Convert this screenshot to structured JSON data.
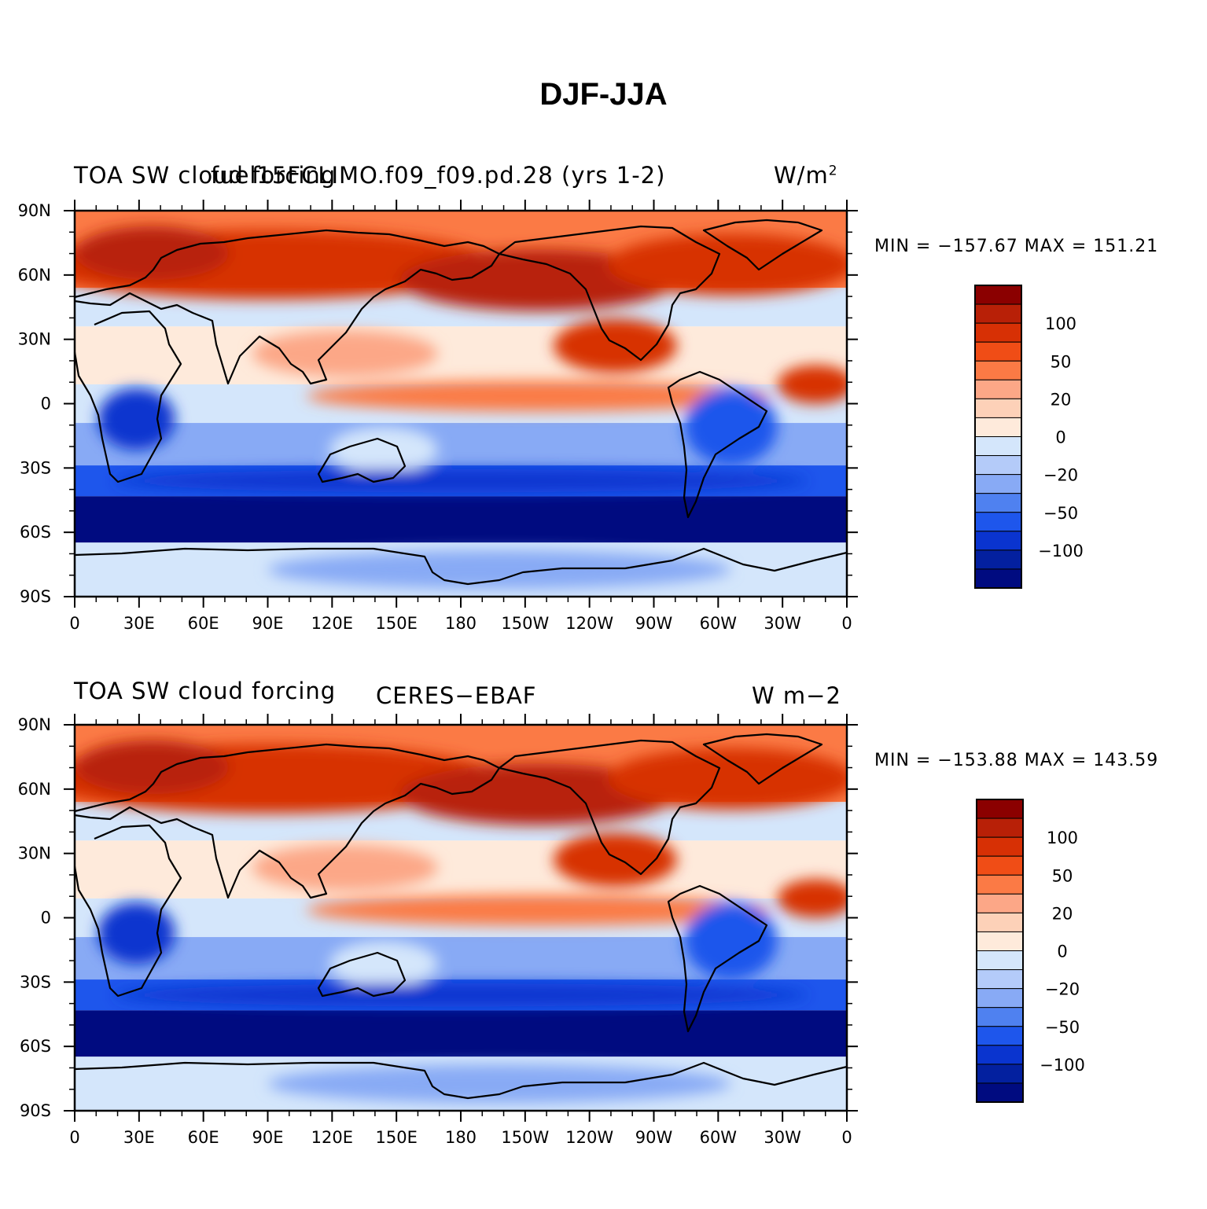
{
  "title": "DJF-JJA",
  "panels": [
    {
      "left_title": "TOA SW cloud forcing",
      "center_title": "fuel15FCLIMO.f09_f09.pd.28 (yrs 1-2)",
      "units": "W/m",
      "units_sup": "2",
      "min_max": "MIN = −157.67  MAX = 151.21"
    },
    {
      "left_title": "TOA SW cloud forcing",
      "center_title": "CERES−EBAF",
      "units": "W m−2",
      "units_sup": "",
      "min_max": "MIN = −153.88  MAX = 143.59"
    }
  ],
  "x_ticks": [
    "0",
    "30E",
    "60E",
    "90E",
    "120E",
    "150E",
    "180",
    "150W",
    "120W",
    "90W",
    "60W",
    "30W",
    "0"
  ],
  "y_ticks": [
    "90N",
    "60N",
    "30N",
    "0",
    "30S",
    "60S",
    "90S"
  ],
  "colorbar": {
    "labels": [
      "100",
      "50",
      "20",
      "0",
      "−20",
      "−50",
      "−100"
    ],
    "colors": [
      "#8b0000",
      "#b82007",
      "#d73005",
      "#f04d16",
      "#fb7a45",
      "#fca787",
      "#fdd1b8",
      "#feeadb",
      "#d4e6fb",
      "#b4cbf9",
      "#88aaf5",
      "#4f81f0",
      "#1e56ec",
      "#0a34cf",
      "#03209f",
      "#000b80"
    ]
  },
  "map_colors": {
    "deep_red": "#b82007",
    "red": "#d73005",
    "orange": "#fb7a45",
    "salmon": "#fca787",
    "peach": "#feeadb",
    "pale_blue": "#d4e6fb",
    "light_blue": "#88aaf5",
    "blue": "#1e56ec",
    "dark_blue": "#0a34cf",
    "navy": "#000b80"
  }
}
